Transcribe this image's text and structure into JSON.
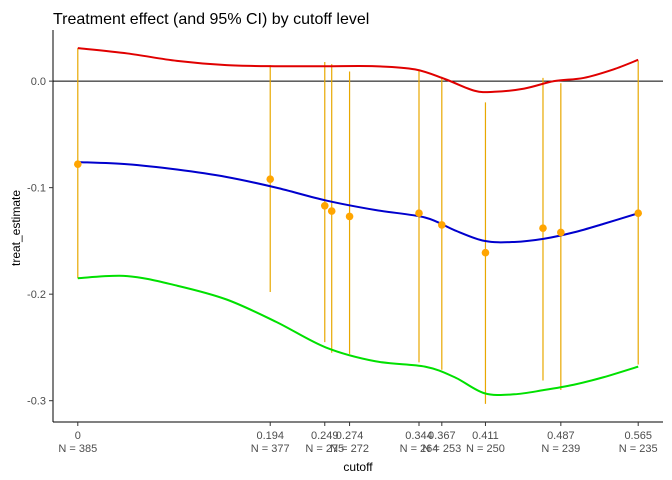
{
  "chart_data": {
    "type": "line",
    "title": "Treatment effect (and 95% CI) by cutoff level",
    "xlabel": "cutoff",
    "ylabel": "treat_estimate",
    "xlim": [
      -0.025,
      0.59
    ],
    "ylim": [
      -0.32,
      0.048
    ],
    "yticks": [
      0.0,
      -0.1,
      -0.2,
      -0.3
    ],
    "ytick_labels": [
      "0.0",
      "-0.1",
      "-0.2",
      "-0.3"
    ],
    "xticks": [
      {
        "x": 0,
        "label": "0",
        "n_label": "N = 385"
      },
      {
        "x": 0.194,
        "label": "0.194",
        "n_label": "N = 377"
      },
      {
        "x": 0.249,
        "label": "0.249",
        "n_label": "N = 275"
      },
      {
        "x": 0.274,
        "label": "0.274",
        "n_label": "N = 272"
      },
      {
        "x": 0.344,
        "label": "0.344",
        "n_label": "N = 264"
      },
      {
        "x": 0.367,
        "label": "0.367",
        "n_label": "N = 253"
      },
      {
        "x": 0.411,
        "label": "0.411",
        "n_label": "N = 250"
      },
      {
        "x": 0.487,
        "label": "0.487",
        "n_label": "N = 239"
      },
      {
        "x": 0.565,
        "label": "0.565",
        "n_label": "N = 235"
      }
    ],
    "hline": 0,
    "points": [
      {
        "x": 0.0,
        "y": -0.078,
        "lo": -0.185,
        "hi": 0.031
      },
      {
        "x": 0.194,
        "y": -0.092,
        "lo": -0.198,
        "hi": 0.015
      },
      {
        "x": 0.249,
        "y": -0.117,
        "lo": -0.245,
        "hi": 0.018
      },
      {
        "x": 0.256,
        "y": -0.122,
        "lo": -0.255,
        "hi": 0.016
      },
      {
        "x": 0.274,
        "y": -0.127,
        "lo": -0.256,
        "hi": 0.009
      },
      {
        "x": 0.344,
        "y": -0.124,
        "lo": -0.264,
        "hi": 0.011
      },
      {
        "x": 0.367,
        "y": -0.135,
        "lo": -0.271,
        "hi": 0.004
      },
      {
        "x": 0.411,
        "y": -0.161,
        "lo": -0.303,
        "hi": -0.02
      },
      {
        "x": 0.469,
        "y": -0.138,
        "lo": -0.281,
        "hi": 0.003
      },
      {
        "x": 0.487,
        "y": -0.142,
        "lo": -0.29,
        "hi": -0.002
      },
      {
        "x": 0.565,
        "y": -0.124,
        "lo": -0.266,
        "hi": 0.019
      }
    ],
    "series": [
      {
        "role": "smoothed estimate",
        "color": "#0000cd",
        "x": [
          0.0,
          0.05,
          0.1,
          0.15,
          0.2,
          0.25,
          0.3,
          0.35,
          0.38,
          0.41,
          0.44,
          0.47,
          0.5,
          0.53,
          0.565
        ],
        "y": [
          -0.076,
          -0.078,
          -0.083,
          -0.09,
          -0.1,
          -0.112,
          -0.121,
          -0.128,
          -0.14,
          -0.15,
          -0.151,
          -0.148,
          -0.142,
          -0.134,
          -0.124
        ]
      },
      {
        "role": "smoothed upper CI",
        "color": "#e00000",
        "x": [
          0.0,
          0.05,
          0.1,
          0.15,
          0.2,
          0.25,
          0.3,
          0.34,
          0.37,
          0.4,
          0.42,
          0.45,
          0.48,
          0.51,
          0.54,
          0.565
        ],
        "y": [
          0.031,
          0.026,
          0.019,
          0.015,
          0.014,
          0.014,
          0.014,
          0.011,
          0.002,
          -0.009,
          -0.01,
          -0.007,
          0.0,
          0.003,
          0.011,
          0.02
        ]
      },
      {
        "role": "smoothed lower CI",
        "color": "#00e000",
        "x": [
          0.0,
          0.05,
          0.1,
          0.15,
          0.2,
          0.25,
          0.3,
          0.35,
          0.38,
          0.41,
          0.44,
          0.47,
          0.5,
          0.53,
          0.565
        ],
        "y": [
          -0.185,
          -0.183,
          -0.192,
          -0.205,
          -0.226,
          -0.25,
          -0.263,
          -0.268,
          -0.278,
          -0.293,
          -0.294,
          -0.29,
          -0.285,
          -0.278,
          -0.268
        ]
      }
    ],
    "point_color": "#ffa500",
    "errorbar_color": "#e8a800",
    "grid": false
  }
}
